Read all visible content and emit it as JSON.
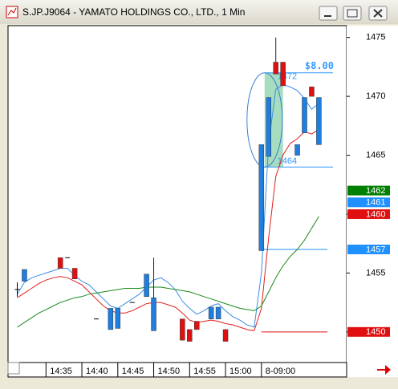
{
  "chart_data": {
    "type": "candlestick",
    "title": "S.JP.J9064 - YAMATO HOLDINGS CO., LTD., 1 Min",
    "categories": [
      null,
      null,
      null,
      null,
      null,
      null,
      null,
      null,
      null,
      null,
      null,
      null,
      null,
      null,
      null,
      null,
      null,
      null,
      null,
      null,
      null,
      null,
      null,
      null,
      null,
      null,
      null,
      null,
      null,
      null,
      null,
      null,
      null,
      null,
      null,
      null,
      null,
      null,
      null,
      null,
      null,
      null,
      null
    ],
    "open": [
      1453.6,
      1454.3,
      null,
      null,
      null,
      null,
      1456.3,
      1456.3,
      1455.4,
      null,
      null,
      1451.1,
      null,
      1450.2,
      1450.3,
      null,
      1452.5,
      null,
      1453.0,
      1450.1,
      null,
      null,
      null,
      1451.1,
      1450.2,
      1450.9,
      null,
      1451.1,
      1451.1,
      1450.2,
      null,
      null,
      null,
      null,
      1456.9,
      1464.9,
      1472.9,
      1472.9,
      null,
      1465.0,
      1466.9,
      1470.8,
      1465.9
    ],
    "high": [
      1454.2,
      1455.3,
      null,
      null,
      null,
      null,
      1456.3,
      1456.3,
      1455.4,
      null,
      null,
      1451.1,
      null,
      1452.0,
      1452.0,
      null,
      1452.5,
      null,
      1454.9,
      1456.3,
      null,
      null,
      null,
      1451.1,
      1450.2,
      1450.9,
      null,
      1452.1,
      1452.1,
      1450.2,
      null,
      null,
      null,
      null,
      1465.9,
      1469.9,
      1475.0,
      1472.9,
      null,
      1465.9,
      1469.9,
      1470.8,
      1469.9
    ],
    "low": [
      1453.0,
      1454.3,
      null,
      null,
      null,
      null,
      1455.4,
      1456.3,
      1454.5,
      null,
      null,
      1451.1,
      null,
      1450.2,
      1450.3,
      null,
      1452.5,
      null,
      1453.0,
      1450.1,
      null,
      null,
      null,
      1449.3,
      1449.2,
      1450.2,
      null,
      1451.1,
      1451.1,
      1449.2,
      null,
      null,
      null,
      null,
      1456.9,
      1464.9,
      1471.9,
      1470.9,
      null,
      1465.0,
      1466.9,
      1470.0,
      1465.9
    ],
    "close": [
      1453.6,
      1455.3,
      null,
      null,
      null,
      null,
      1455.4,
      1456.3,
      1454.5,
      null,
      null,
      1451.1,
      null,
      1452.0,
      1452.0,
      null,
      1452.5,
      null,
      1454.9,
      1452.9,
      null,
      null,
      null,
      1449.3,
      1449.2,
      1450.2,
      null,
      1452.1,
      1452.1,
      1449.2,
      null,
      null,
      null,
      null,
      1465.9,
      1469.9,
      1471.9,
      1470.9,
      null,
      1465.9,
      1469.9,
      1470.0,
      1469.9
    ],
    "up_color": "#1f7fe0",
    "down_color": "#e01010",
    "flat_color": "#000000",
    "series": [
      {
        "color": "#3a8ee6",
        "values": [
          1453.2,
          1454.2,
          1454.6,
          1454.8,
          1455.0,
          1455.2,
          1455.4,
          1455.4,
          1454.8,
          1454.3,
          1454.0,
          1453.4,
          1452.8,
          1452.2,
          1452.0,
          1452.4,
          1452.8,
          1453.2,
          1453.8,
          1454.4,
          1454.6,
          1454.2,
          1453.6,
          1452.6,
          1452.0,
          1451.5,
          1451.8,
          1452.2,
          1452.4,
          1451.8,
          1451.3,
          1451.0,
          1450.6,
          1450.4,
          1455.0,
          1466.0,
          1470.6,
          1471.0,
          1470.8,
          1470.5,
          1469.8,
          1468.9,
          1469.4
        ]
      },
      {
        "color": "#e02020",
        "values": [
          1452.9,
          1453.3,
          1453.7,
          1454.1,
          1454.4,
          1454.6,
          1454.7,
          1454.6,
          1454.3,
          1454.0,
          1453.4,
          1452.8,
          1452.2,
          1451.8,
          1451.6,
          1451.6,
          1451.8,
          1452.1,
          1452.4,
          1452.5,
          1452.5,
          1452.3,
          1452.1,
          1451.6,
          1451.0,
          1450.8,
          1450.9,
          1451.0,
          1450.9,
          1450.7,
          1450.6,
          1450.4,
          1450.2,
          1450.1,
          1452.0,
          1458.0,
          1463.2,
          1465.0,
          1466.0,
          1466.4,
          1467.0,
          1466.8,
          1467.2
        ]
      },
      {
        "color": "#1a8a1a",
        "values": [
          1450.4,
          1450.8,
          1451.2,
          1451.6,
          1451.9,
          1452.2,
          1452.5,
          1452.7,
          1452.9,
          1453.0,
          1453.2,
          1453.3,
          1453.4,
          1453.5,
          1453.6,
          1453.7,
          1453.7,
          1453.7,
          1453.8,
          1453.8,
          1453.8,
          1453.7,
          1453.6,
          1453.5,
          1453.4,
          1453.2,
          1453.0,
          1452.8,
          1452.6,
          1452.4,
          1452.2,
          1452.0,
          1451.9,
          1451.8,
          1452.2,
          1453.4,
          1454.6,
          1455.6,
          1456.4,
          1457.0,
          1457.8,
          1458.8,
          1459.8
        ]
      }
    ],
    "ylim": [
      1447.4,
      1476
    ],
    "yticks": [
      1450,
      1455,
      1460,
      1465,
      1470,
      1475
    ],
    "xticks": [
      {
        "value": 4,
        "label": "14:35"
      },
      {
        "value": 9,
        "label": "14:40"
      },
      {
        "value": 14,
        "label": "14:45"
      },
      {
        "value": 19,
        "label": "14:50"
      },
      {
        "value": 24,
        "label": "14:55"
      },
      {
        "value": 29,
        "label": "15:00"
      },
      {
        "value": 34,
        "label": "8-09:00"
      }
    ],
    "levels": [
      {
        "value": 1472,
        "color": "#3399ff"
      },
      {
        "value": 1464,
        "color": "#3399ff"
      }
    ],
    "annotation": "$8.00",
    "price_markers": [
      {
        "value": 1462,
        "color": "#008000",
        "line": false
      },
      {
        "value": 1461,
        "color": "#1e90ff",
        "line": false
      },
      {
        "value": 1460,
        "color": "#e01010",
        "line": false
      },
      {
        "value": 1457,
        "color": "#1e90ff",
        "line": true
      },
      {
        "value": 1450,
        "color": "#e01010",
        "line": true
      }
    ]
  }
}
